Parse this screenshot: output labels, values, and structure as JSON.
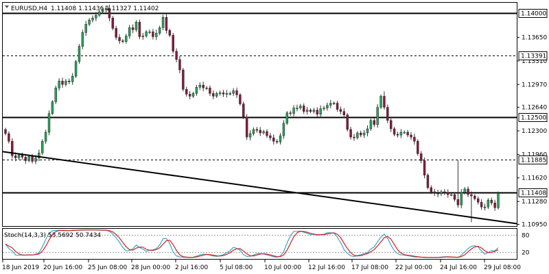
{
  "header": {
    "symbol_timeframe": "EURUSD,H4",
    "ohlc": "1.11408 1.11436 1.11327 1.11402"
  },
  "oscillator": {
    "label": "Stoch(14,3,3) 53.5692 50.7434",
    "levels": [
      "80",
      "20"
    ]
  },
  "chart_data": {
    "type": "candlestick",
    "price_axis_ticks": [
      "1.13650",
      "1.13310",
      "1.12970",
      "1.12640",
      "1.12300",
      "1.11960",
      "1.11620",
      "1.11280",
      "1.10950"
    ],
    "time_axis_ticks": [
      "18 Jun 2019",
      "20 Jun 16:00",
      "25 Jun 08:00",
      "28 Jun 00:00",
      "2 Jul 16:00",
      "5 Jul 08:00",
      "10 Jul 00:00",
      "12 Jul 16:00",
      "17 Jul 08:00",
      "22 Jul 00:00",
      "24 Jul 16:00",
      "29 Jul 08:00"
    ],
    "horizontal_levels": [
      {
        "value": 1.14,
        "label": "1.14000",
        "style": "solid"
      },
      {
        "value": 1.13391,
        "label": "1.13391",
        "style": "dashed"
      },
      {
        "value": 1.125,
        "label": "1.12500",
        "style": "solid"
      },
      {
        "value": 1.11885,
        "label": "1.11885",
        "style": "dashed"
      },
      {
        "value": 1.11408,
        "label": "1.11408",
        "style": "solid"
      }
    ],
    "trendline": {
      "from": 1.12,
      "to": 1.1096
    },
    "up_color": "#26a65b",
    "down_color": "#8b1a3a",
    "closes": [
      1.1226,
      1.1215,
      1.1194,
      1.1191,
      1.1195,
      1.1192,
      1.1187,
      1.1193,
      1.1186,
      1.1191,
      1.1198,
      1.1215,
      1.1228,
      1.1255,
      1.1272,
      1.1292,
      1.1302,
      1.1297,
      1.1302,
      1.1301,
      1.1309,
      1.133,
      1.1352,
      1.1372,
      1.1384,
      1.139,
      1.1393,
      1.1397,
      1.1402,
      1.1405,
      1.1407,
      1.1393,
      1.1378,
      1.1365,
      1.136,
      1.1359,
      1.1367,
      1.1379,
      1.1376,
      1.1387,
      1.1366,
      1.1367,
      1.1373,
      1.1373,
      1.1366,
      1.1371,
      1.1379,
      1.1394,
      1.1375,
      1.1368,
      1.1345,
      1.1333,
      1.1318,
      1.129,
      1.1283,
      1.128,
      1.1284,
      1.1293,
      1.1296,
      1.1292,
      1.1292,
      1.1284,
      1.128,
      1.1284,
      1.1285,
      1.1283,
      1.1284,
      1.1284,
      1.1288,
      1.1282,
      1.1269,
      1.125,
      1.1221,
      1.1226,
      1.1232,
      1.1231,
      1.1227,
      1.1229,
      1.1223,
      1.122,
      1.1215,
      1.1214,
      1.1223,
      1.1241,
      1.1256,
      1.1255,
      1.1263,
      1.1263,
      1.1266,
      1.1258,
      1.126,
      1.1258,
      1.126,
      1.1254,
      1.1262,
      1.1263,
      1.1267,
      1.127,
      1.127,
      1.1261,
      1.1258,
      1.1253,
      1.1232,
      1.1221,
      1.122,
      1.1227,
      1.1224,
      1.1227,
      1.1233,
      1.1245,
      1.1239,
      1.1264,
      1.128,
      1.1264,
      1.1245,
      1.1233,
      1.1225,
      1.1224,
      1.1228,
      1.1228,
      1.1224,
      1.1221,
      1.1215,
      1.1197,
      1.1187,
      1.1166,
      1.1148,
      1.1142,
      1.114,
      1.1139,
      1.1142,
      1.1141,
      1.1138,
      1.1138,
      1.1131,
      1.1123,
      1.1141,
      1.1146,
      1.1138,
      1.1136,
      1.1132,
      1.1127,
      1.112,
      1.112,
      1.113,
      1.1126,
      1.1119,
      1.114
    ]
  }
}
